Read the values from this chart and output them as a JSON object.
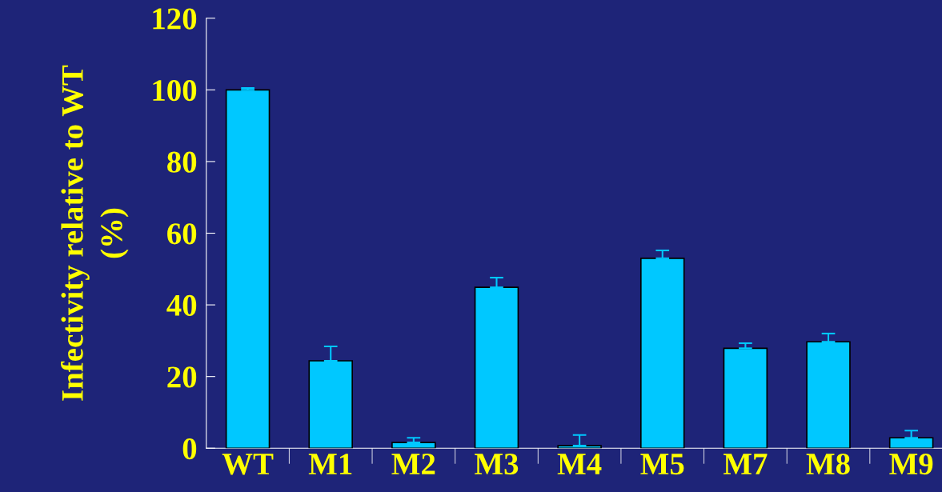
{
  "chart_data": {
    "type": "bar",
    "ylabel": "Infectivity relative to WT\n(%)",
    "categories": [
      "WT",
      "M1",
      "M2",
      "M3",
      "M4",
      "M5",
      "M7",
      "M8",
      "M9"
    ],
    "values": [
      100,
      24.4,
      1.6,
      44.9,
      0.7,
      53,
      27.9,
      29.7,
      2.9
    ],
    "errors": [
      [
        100,
        100.5
      ],
      [
        24.4,
        28.4
      ],
      [
        1.6,
        2.9
      ],
      [
        44.9,
        47.6
      ],
      [
        0.7,
        3.7
      ],
      [
        53,
        55.2
      ],
      [
        27.9,
        29.3
      ],
      [
        29.7,
        32
      ],
      [
        2.9,
        4.9
      ]
    ],
    "color": "#00c8ff",
    "ylim": [
      0,
      120
    ],
    "yticks": [
      0,
      20,
      40,
      60,
      80,
      100,
      120
    ],
    "grid": false
  }
}
